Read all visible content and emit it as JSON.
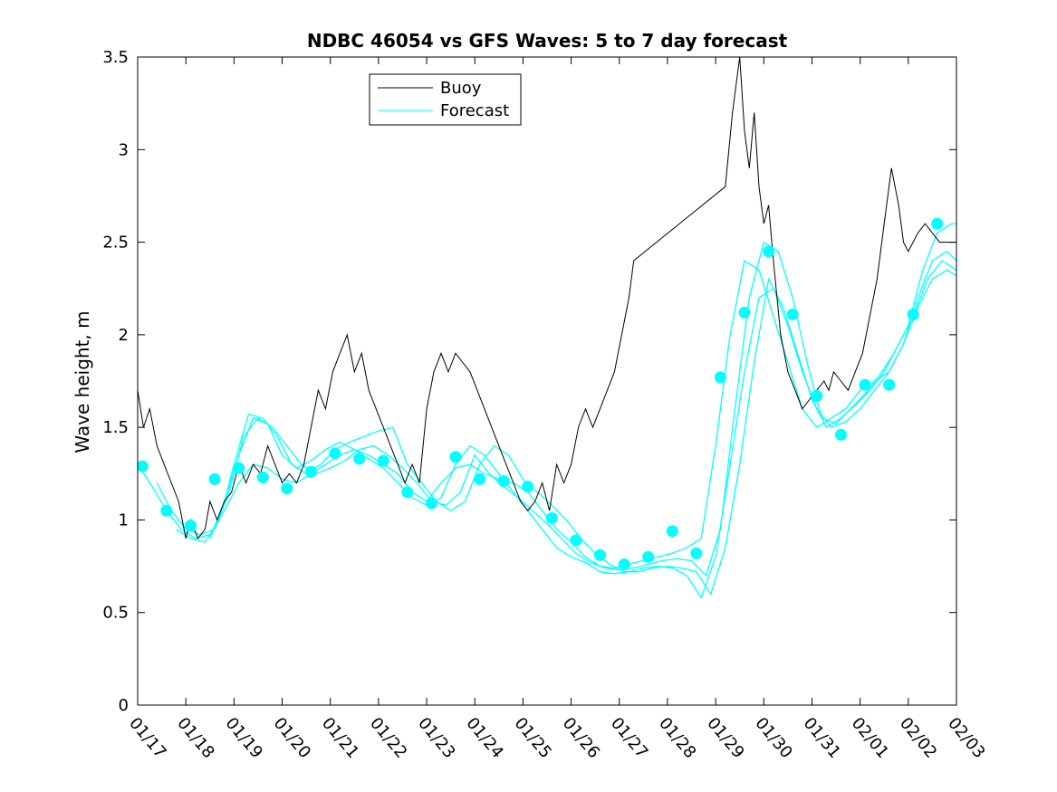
{
  "chart_data": {
    "type": "line",
    "title": "NDBC 46054 vs GFS Waves: 5 to 7 day forecast",
    "xlabel": "",
    "ylabel": "Wave height, m",
    "xlim": [
      0,
      17
    ],
    "ylim": [
      0,
      3.5
    ],
    "x_tick_values": [
      0,
      1,
      2,
      3,
      4,
      5,
      6,
      7,
      8,
      9,
      10,
      11,
      12,
      13,
      14,
      15,
      16,
      17
    ],
    "x_tick_labels": [
      "01/17",
      "01/18",
      "01/19",
      "01/20",
      "01/21",
      "01/22",
      "01/23",
      "01/24",
      "01/25",
      "01/26",
      "01/27",
      "01/28",
      "01/29",
      "01/30",
      "01/31",
      "02/01",
      "02/02",
      "02/03"
    ],
    "y_tick_values": [
      0,
      0.5,
      1,
      1.5,
      2,
      2.5,
      3,
      3.5
    ],
    "y_tick_labels": [
      "0",
      "0.5",
      "1",
      "1.5",
      "2",
      "2.5",
      "3",
      "3.5"
    ],
    "colors": {
      "buoy": "#000000",
      "forecast": "#00ffff"
    },
    "legend": {
      "location": "top-center",
      "entries": [
        "Buoy",
        "Forecast"
      ]
    },
    "buoy": {
      "name": "Buoy",
      "x": [
        0,
        0.12,
        0.25,
        0.4,
        0.55,
        0.7,
        0.85,
        1.0,
        1.1,
        1.25,
        1.4,
        1.5,
        1.65,
        1.8,
        1.95,
        2.1,
        2.25,
        2.4,
        2.55,
        2.7,
        2.85,
        3.0,
        3.15,
        3.3,
        3.45,
        3.6,
        3.75,
        3.9,
        4.05,
        4.2,
        4.35,
        4.5,
        4.65,
        4.8,
        4.95,
        5.1,
        5.25,
        5.4,
        5.55,
        5.7,
        5.85,
        6.0,
        6.15,
        6.3,
        6.45,
        6.6,
        6.75,
        6.9,
        7.05,
        7.2,
        7.35,
        7.5,
        7.65,
        7.8,
        7.95,
        8.1,
        8.25,
        8.4,
        8.55,
        8.7,
        8.85,
        9.0,
        9.15,
        9.3,
        9.45,
        9.6,
        9.75,
        9.9,
        10.05,
        10.2,
        10.3,
        12.2,
        12.35,
        12.5,
        12.6,
        12.7,
        12.8,
        12.9,
        13.0,
        13.1,
        13.2,
        13.35,
        13.5,
        13.65,
        13.8,
        13.95,
        14.1,
        14.25,
        14.35,
        14.45,
        14.6,
        14.75,
        14.9,
        15.05,
        15.2,
        15.35,
        15.5,
        15.65,
        15.8,
        15.9,
        16.0,
        16.1,
        16.2,
        16.35,
        16.5,
        16.65,
        16.8,
        17.0
      ],
      "y": [
        1.7,
        1.5,
        1.6,
        1.4,
        1.3,
        1.2,
        1.1,
        0.9,
        1.0,
        0.9,
        0.95,
        1.1,
        1.0,
        1.1,
        1.15,
        1.3,
        1.2,
        1.3,
        1.25,
        1.4,
        1.3,
        1.2,
        1.25,
        1.2,
        1.3,
        1.5,
        1.7,
        1.6,
        1.8,
        1.9,
        2.0,
        1.8,
        1.9,
        1.7,
        1.6,
        1.5,
        1.4,
        1.3,
        1.2,
        1.3,
        1.2,
        1.6,
        1.8,
        1.9,
        1.8,
        1.9,
        1.85,
        1.8,
        1.7,
        1.6,
        1.5,
        1.4,
        1.3,
        1.2,
        1.1,
        1.05,
        1.1,
        1.2,
        1.05,
        1.3,
        1.2,
        1.3,
        1.5,
        1.6,
        1.5,
        1.6,
        1.7,
        1.8,
        2.0,
        2.2,
        2.4,
        2.8,
        3.2,
        3.5,
        3.1,
        2.9,
        3.2,
        2.8,
        2.6,
        2.7,
        2.4,
        2.0,
        1.8,
        1.7,
        1.6,
        1.65,
        1.7,
        1.75,
        1.7,
        1.8,
        1.75,
        1.7,
        1.8,
        1.9,
        2.1,
        2.3,
        2.6,
        2.9,
        2.7,
        2.5,
        2.45,
        2.5,
        2.55,
        2.6,
        2.55,
        2.5,
        2.5,
        2.5
      ]
    },
    "forecast_series": [
      {
        "name": "Forecast",
        "x": [
          0,
          0.3,
          0.6,
          0.9,
          1.2,
          1.5,
          1.8,
          2.1,
          2.4,
          2.7,
          3.0,
          3.3,
          3.6,
          3.9,
          4.2,
          4.5,
          4.8,
          5.1,
          5.4,
          5.7,
          6.0,
          6.3,
          6.6,
          6.9,
          7.2,
          7.5,
          7.8,
          8.1,
          8.4,
          8.7,
          9.0,
          9.3,
          9.6,
          9.9,
          10.2,
          10.5,
          10.8,
          11.1,
          11.4,
          11.7,
          12.0,
          12.3,
          12.6,
          12.9,
          13.2,
          13.5,
          13.8,
          14.1,
          14.4,
          14.7,
          15.0,
          15.3,
          15.6,
          15.9,
          16.2,
          16.5,
          16.8,
          17.0
        ],
        "y": [
          1.3,
          1.18,
          1.05,
          0.95,
          0.9,
          0.92,
          1.05,
          1.2,
          1.3,
          1.28,
          1.22,
          1.2,
          1.25,
          1.3,
          1.35,
          1.38,
          1.35,
          1.3,
          1.25,
          1.15,
          1.1,
          1.2,
          1.28,
          1.3,
          1.25,
          1.22,
          1.2,
          1.15,
          1.05,
          0.95,
          0.88,
          0.8,
          0.75,
          0.74,
          0.76,
          0.78,
          0.8,
          0.82,
          0.85,
          0.9,
          1.4,
          2.0,
          2.4,
          2.35,
          2.1,
          1.85,
          1.6,
          1.5,
          1.55,
          1.6,
          1.7,
          1.75,
          1.8,
          1.95,
          2.2,
          2.4,
          2.45,
          2.4
        ]
      },
      {
        "name": "Forecast",
        "x": [
          0.4,
          0.7,
          1.0,
          1.3,
          1.6,
          1.9,
          2.2,
          2.5,
          2.8,
          3.1,
          3.4,
          3.7,
          4.0,
          4.3,
          4.6,
          4.9,
          5.2,
          5.5,
          5.8,
          6.1,
          6.4,
          6.7,
          7.0,
          7.3,
          7.6,
          7.9,
          8.2,
          8.5,
          8.8,
          9.1,
          9.4,
          9.7,
          10.0,
          10.3,
          10.6,
          10.9,
          11.2,
          11.5,
          11.8,
          12.1,
          12.4,
          12.7,
          13.0,
          13.3,
          13.6,
          13.9,
          14.2,
          14.5,
          14.8,
          15.1,
          15.4,
          15.7,
          16.0,
          16.3,
          16.6,
          16.9,
          17.0
        ],
        "y": [
          1.2,
          1.05,
          0.95,
          0.92,
          0.95,
          1.15,
          1.45,
          1.55,
          1.5,
          1.4,
          1.3,
          1.25,
          1.28,
          1.32,
          1.38,
          1.4,
          1.35,
          1.28,
          1.2,
          1.1,
          1.08,
          1.15,
          1.35,
          1.25,
          1.18,
          1.12,
          1.05,
          0.98,
          0.9,
          0.82,
          0.77,
          0.74,
          0.73,
          0.74,
          0.76,
          0.78,
          0.79,
          0.78,
          0.7,
          0.95,
          1.6,
          2.2,
          2.5,
          2.45,
          2.2,
          1.85,
          1.55,
          1.52,
          1.6,
          1.68,
          1.78,
          1.9,
          2.05,
          2.35,
          2.55,
          2.6,
          2.6
        ]
      },
      {
        "name": "Forecast",
        "x": [
          0.8,
          1.1,
          1.4,
          1.7,
          2.0,
          2.3,
          2.6,
          2.9,
          3.2,
          3.5,
          3.8,
          4.1,
          4.4,
          4.7,
          5.0,
          5.3,
          5.6,
          5.9,
          6.2,
          6.5,
          6.8,
          7.1,
          7.4,
          7.7,
          8.0,
          8.3,
          8.6,
          8.9,
          9.2,
          9.5,
          9.8,
          10.1,
          10.4,
          10.7,
          11.0,
          11.3,
          11.6,
          11.9,
          12.2,
          12.5,
          12.8,
          13.1,
          13.4,
          13.7,
          14.0,
          14.3,
          14.6,
          14.9,
          15.2,
          15.5,
          15.8,
          16.1,
          16.4,
          16.7,
          17.0
        ],
        "y": [
          0.95,
          0.9,
          0.88,
          1.0,
          1.3,
          1.57,
          1.55,
          1.45,
          1.3,
          1.25,
          1.3,
          1.38,
          1.42,
          1.45,
          1.48,
          1.5,
          1.3,
          1.2,
          1.1,
          1.05,
          1.1,
          1.3,
          1.4,
          1.35,
          1.22,
          1.15,
          1.08,
          1.0,
          0.9,
          0.82,
          0.76,
          0.72,
          0.72,
          0.74,
          0.75,
          0.74,
          0.72,
          0.6,
          0.85,
          1.3,
          1.85,
          2.3,
          2.15,
          1.9,
          1.65,
          1.5,
          1.55,
          1.62,
          1.7,
          1.8,
          1.95,
          2.1,
          2.3,
          2.4,
          2.35
        ]
      },
      {
        "name": "Forecast",
        "x": [
          1.5,
          1.8,
          2.1,
          2.4,
          2.7,
          3.0,
          3.3,
          3.6,
          3.9,
          4.2,
          4.5,
          4.8,
          5.1,
          5.4,
          5.7,
          6.0,
          6.3,
          6.6,
          6.9,
          7.2,
          7.5,
          7.8,
          8.1,
          8.4,
          8.7,
          9.0,
          9.3,
          9.6,
          9.9,
          10.2,
          10.5,
          10.8,
          11.1,
          11.4,
          11.7,
          12.0,
          12.3,
          12.6,
          12.9,
          13.2,
          13.5,
          13.8,
          14.1,
          14.4,
          14.7,
          15.0,
          15.3,
          15.6,
          15.9,
          16.2,
          16.5,
          16.8,
          17.0
        ],
        "y": [
          0.9,
          1.1,
          1.35,
          1.55,
          1.52,
          1.35,
          1.28,
          1.32,
          1.38,
          1.42,
          1.38,
          1.33,
          1.28,
          1.2,
          1.12,
          1.08,
          1.12,
          1.3,
          1.4,
          1.35,
          1.25,
          1.15,
          1.05,
          0.95,
          0.85,
          0.8,
          0.77,
          0.72,
          0.71,
          0.72,
          0.74,
          0.75,
          0.74,
          0.7,
          0.58,
          0.8,
          1.3,
          1.8,
          2.2,
          2.25,
          2.05,
          1.8,
          1.6,
          1.5,
          1.53,
          1.6,
          1.7,
          1.8,
          1.95,
          2.15,
          2.3,
          2.35,
          2.32
        ]
      }
    ],
    "forecast_markers": {
      "x": [
        0.1,
        0.6,
        1.1,
        1.6,
        2.1,
        2.6,
        3.1,
        3.6,
        4.1,
        4.6,
        5.1,
        5.6,
        6.1,
        6.6,
        7.1,
        7.6,
        8.1,
        8.6,
        9.1,
        9.6,
        10.1,
        10.6,
        11.1,
        11.6,
        12.1,
        12.6,
        13.1,
        13.6,
        14.1,
        14.6,
        15.1,
        15.6,
        16.1,
        16.6
      ],
      "y": [
        1.29,
        1.05,
        0.97,
        1.22,
        1.28,
        1.23,
        1.17,
        1.26,
        1.36,
        1.33,
        1.32,
        1.15,
        1.09,
        1.34,
        1.22,
        1.21,
        1.18,
        1.01,
        0.89,
        0.81,
        0.76,
        0.8,
        0.94,
        0.82,
        1.77,
        2.12,
        2.45,
        2.11,
        1.67,
        1.46,
        1.73,
        1.73,
        2.11,
        2.6
      ]
    }
  }
}
